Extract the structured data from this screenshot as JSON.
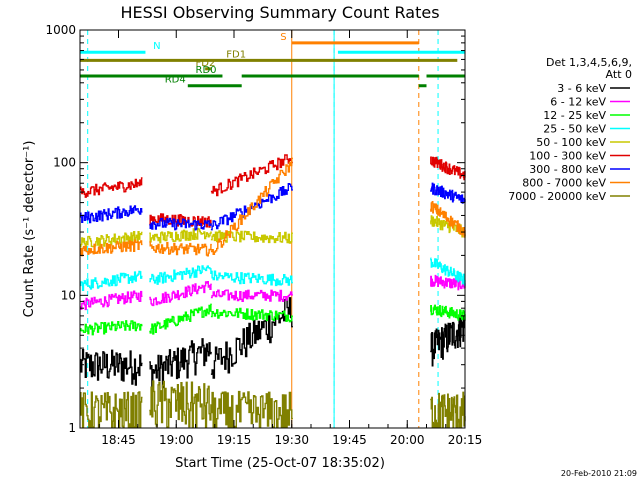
{
  "chart_data": {
    "type": "line",
    "title": "HESSI Observing Summary Count Rates",
    "xlabel": "Start Time (25-Oct-07 18:35:02)",
    "ylabel": "Count Rate (s⁻¹ detector⁻¹)",
    "x_unit": "minutes of day (UT)",
    "xlim": [
      1115,
      1215
    ],
    "ylim": [
      1,
      1000
    ],
    "y_scale": "log",
    "x_ticks": [
      {
        "value": 1125,
        "label": "18:45"
      },
      {
        "value": 1140,
        "label": "19:00"
      },
      {
        "value": 1155,
        "label": "19:15"
      },
      {
        "value": 1170,
        "label": "19:30"
      },
      {
        "value": 1185,
        "label": "19:45"
      },
      {
        "value": 1200,
        "label": "20:00"
      },
      {
        "value": 1215,
        "label": "20:15"
      }
    ],
    "y_ticks": [
      {
        "value": 1,
        "label": "1"
      },
      {
        "value": 10,
        "label": "10"
      },
      {
        "value": 100,
        "label": "100"
      },
      {
        "value": 1000,
        "label": "1000"
      }
    ],
    "legend": {
      "placement": "right",
      "title_lines": [
        "Det 1,3,4,5,6,9,",
        "Att 0"
      ],
      "items": [
        {
          "label": "3 - 6 keV",
          "color": "#000000"
        },
        {
          "label": "6 - 12 keV",
          "color": "#ff00ff"
        },
        {
          "label": "12 - 25 keV",
          "color": "#00ff00"
        },
        {
          "label": "25 - 50 keV",
          "color": "#00ffff"
        },
        {
          "label": "50 - 100 keV",
          "color": "#c8c800"
        },
        {
          "label": "100 - 300 keV",
          "color": "#e00000"
        },
        {
          "label": "300 - 800 keV",
          "color": "#0000ff"
        },
        {
          "label": "800 - 7000 keV",
          "color": "#ff8000"
        },
        {
          "label": "7000 - 20000 keV",
          "color": "#808000"
        }
      ]
    },
    "segments": [
      [
        1115,
        1131
      ],
      [
        1133,
        1149
      ],
      [
        1149,
        1170
      ],
      [
        1206,
        1215
      ]
    ],
    "series": [
      {
        "name": "3 - 6 keV",
        "color": "#000000",
        "values": [
          [
            3,
            3
          ],
          [
            2.6,
            4
          ],
          [
            3,
            8
          ],
          [
            4,
            6
          ]
        ]
      },
      {
        "name": "6 - 12 keV",
        "color": "#ff00ff",
        "values": [
          [
            8.5,
            10
          ],
          [
            9,
            12
          ],
          [
            10,
            10
          ],
          [
            13,
            12
          ]
        ]
      },
      {
        "name": "12 - 25 keV",
        "color": "#00ff00",
        "values": [
          [
            5.5,
            6
          ],
          [
            5.5,
            8
          ],
          [
            7.5,
            7
          ],
          [
            8,
            7
          ]
        ]
      },
      {
        "name": "25 - 50 keV",
        "color": "#00ffff",
        "values": [
          [
            12,
            14
          ],
          [
            13,
            16
          ],
          [
            14,
            13
          ],
          [
            18,
            13
          ]
        ]
      },
      {
        "name": "50 - 100 keV",
        "color": "#c8c800",
        "values": [
          [
            25,
            28
          ],
          [
            27,
            30
          ],
          [
            28,
            27
          ],
          [
            37,
            30
          ]
        ]
      },
      {
        "name": "100 - 300 keV",
        "color": "#e00000",
        "values": [
          [
            60,
            70
          ],
          [
            38,
            36
          ],
          [
            60,
            110
          ],
          [
            105,
            80
          ]
        ]
      },
      {
        "name": "300 - 800 keV",
        "color": "#0000ff",
        "values": [
          [
            38,
            45
          ],
          [
            35,
            34
          ],
          [
            33,
            65
          ],
          [
            65,
            52
          ]
        ]
      },
      {
        "name": "800 - 7000 keV",
        "color": "#ff8000",
        "values": [
          [
            22,
            24
          ],
          [
            23,
            22
          ],
          [
            21,
            100
          ],
          [
            48,
            30
          ]
        ]
      },
      {
        "name": "7000 - 20000 keV",
        "color": "#808000",
        "values": [
          [
            1.3,
            1.3
          ],
          [
            1.6,
            1.5
          ],
          [
            1.3,
            1.3
          ],
          [
            1.3,
            1.3
          ]
        ]
      }
    ],
    "saa_start": 1170,
    "saa_end": 1203,
    "night_lines": [
      1117,
      1181,
      1208
    ],
    "flare_lines": [
      1133,
      1204
    ],
    "status_bars": [
      {
        "label": "N",
        "color": "#00ffff",
        "level": 680,
        "spans": [
          [
            1115,
            1132
          ],
          [
            1182,
            1215
          ]
        ],
        "label_x": 1134
      },
      {
        "label": "S",
        "color": "#ff8000",
        "level": 800,
        "spans": [
          [
            1170,
            1203
          ]
        ],
        "label_x": 1167
      },
      {
        "label": "FD1",
        "color": "#808000",
        "level": 590,
        "spans": [
          [
            1115,
            1213
          ]
        ],
        "label_x": 1153
      },
      {
        "label": "FD2",
        "color": "#808000",
        "level": 510,
        "spans": [
          [
            1147.5,
            1149
          ]
        ],
        "label_x": 1145
      },
      {
        "label": "RD0",
        "color": "#008000",
        "level": 450,
        "spans": [
          [
            1115,
            1152
          ],
          [
            1157,
            1203
          ],
          [
            1205,
            1215
          ]
        ],
        "label_x": 1145
      },
      {
        "label": "RD4",
        "color": "#008000",
        "level": 380,
        "spans": [
          [
            1143,
            1157
          ],
          [
            1203,
            1205
          ]
        ],
        "label_x": 1137
      }
    ],
    "footer_date": "20-Feb-2010 21:09"
  }
}
